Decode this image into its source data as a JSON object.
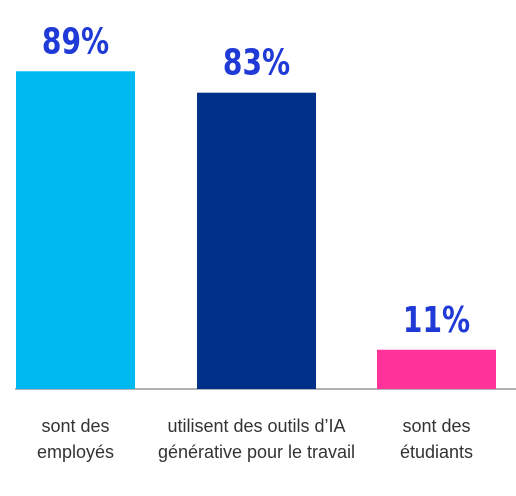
{
  "chart_data": {
    "type": "bar",
    "categories": [
      "sont des employés",
      "utilisent des outils d’IA générative pour le travail",
      "sont des étudiants"
    ],
    "values": [
      89,
      83,
      11
    ],
    "value_labels": [
      "89%",
      "83%",
      "11%"
    ],
    "colors": [
      "#00b9f1",
      "#003087",
      "#ff3399"
    ]
  }
}
